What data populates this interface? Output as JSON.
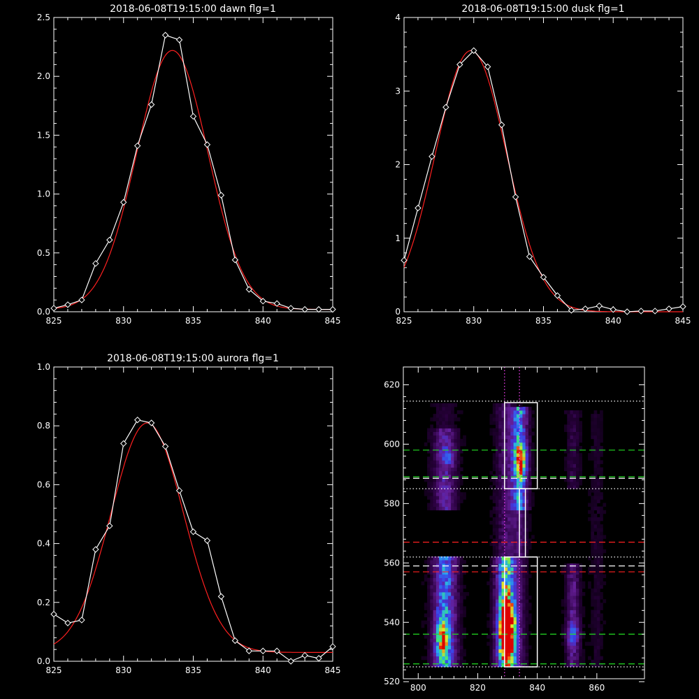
{
  "colors": {
    "background": "#000000",
    "axes": "#ffffff",
    "data_line": "#ffffff",
    "fit_line": "#ff2020",
    "green_guide": "#22dd22",
    "red_guide": "#ff2020",
    "white_guide": "#ffffff",
    "magenta_guide": "#ff40ff"
  },
  "chart_data": [
    {
      "type": "line",
      "title": "2018-06-08T19:15:00 dawn flg=1",
      "xlim": [
        825,
        845
      ],
      "ylim": [
        0,
        2.5
      ],
      "xticks": [
        "825",
        "830",
        "835",
        "840",
        "845"
      ],
      "yticks": [
        "0.0",
        "0.5",
        "1.0",
        "1.5",
        "2.0",
        "2.5"
      ],
      "series": [
        {
          "role": "data",
          "marker": "diamond",
          "x": [
            825,
            826,
            827,
            828,
            829,
            830,
            831,
            832,
            833,
            834,
            835,
            836,
            837,
            838,
            839,
            840,
            841,
            842,
            843,
            844,
            845
          ],
          "y": [
            0.03,
            0.06,
            0.1,
            0.41,
            0.61,
            0.93,
            1.41,
            1.76,
            2.35,
            2.31,
            1.66,
            1.42,
            0.99,
            0.44,
            0.19,
            0.09,
            0.07,
            0.03,
            0.02,
            0.02,
            0.02
          ]
        },
        {
          "role": "fit",
          "gauss": {
            "amp": 2.2,
            "center": 833.5,
            "sigma": 2.55,
            "base": 0.02
          }
        }
      ]
    },
    {
      "type": "line",
      "title": "2018-06-08T19:15:00 dusk flg=1",
      "xlim": [
        825,
        845
      ],
      "ylim": [
        0,
        4
      ],
      "xticks": [
        "825",
        "830",
        "835",
        "840",
        "845"
      ],
      "yticks": [
        "0",
        "1",
        "2",
        "3",
        "4"
      ],
      "series": [
        {
          "role": "data",
          "marker": "diamond",
          "x": [
            825,
            826,
            827,
            828,
            829,
            830,
            831,
            832,
            833,
            834,
            835,
            836,
            837,
            838,
            839,
            840,
            841,
            842,
            843,
            844,
            845
          ],
          "y": [
            0.7,
            1.41,
            2.11,
            2.78,
            3.36,
            3.55,
            3.33,
            2.54,
            1.56,
            0.75,
            0.47,
            0.22,
            0.02,
            0.04,
            0.08,
            0.03,
            0.0,
            0.01,
            0.01,
            0.04,
            0.07
          ]
        },
        {
          "role": "fit",
          "gauss": {
            "amp": 3.55,
            "center": 829.8,
            "sigma": 2.55,
            "base": 0.0
          }
        }
      ]
    },
    {
      "type": "line",
      "title": "2018-06-08T19:15:00 aurora flg=1",
      "xlim": [
        825,
        845
      ],
      "ylim": [
        0,
        1.0
      ],
      "xticks": [
        "825",
        "830",
        "835",
        "840",
        "845"
      ],
      "yticks": [
        "0.0",
        "0.2",
        "0.4",
        "0.6",
        "0.8",
        "1.0"
      ],
      "series": [
        {
          "role": "data",
          "marker": "diamond",
          "x": [
            825,
            826,
            827,
            828,
            829,
            830,
            831,
            832,
            833,
            834,
            835,
            836,
            837,
            838,
            839,
            840,
            841,
            842,
            843,
            844,
            845
          ],
          "y": [
            0.16,
            0.13,
            0.14,
            0.38,
            0.46,
            0.74,
            0.82,
            0.81,
            0.73,
            0.58,
            0.44,
            0.41,
            0.22,
            0.07,
            0.035,
            0.035,
            0.035,
            0.0,
            0.02,
            0.01,
            0.05
          ]
        },
        {
          "role": "fit",
          "gauss": {
            "amp": 0.78,
            "center": 831.7,
            "sigma": 2.6,
            "base": 0.03
          }
        }
      ]
    },
    {
      "type": "heatmap",
      "title": "",
      "xlim": [
        795,
        876
      ],
      "ylim": [
        521,
        626
      ],
      "xticks": [
        "800",
        "820",
        "840",
        "860"
      ],
      "yticks": [
        "520",
        "540",
        "560",
        "580",
        "600",
        "620"
      ],
      "bands": [
        {
          "x": 809,
          "width": 2.6,
          "segments": [
            [
              525,
              562,
              1.0
            ],
            [
              578,
              605,
              0.55
            ],
            [
              605,
              614,
              0.15
            ]
          ]
        },
        {
          "x": 829.5,
          "width": 2.2,
          "segments": [
            [
              525,
              562,
              1.35
            ],
            [
              562,
              614,
              0.35
            ]
          ]
        },
        {
          "x": 834,
          "width": 1.8,
          "segments": [
            [
              525,
              562,
              0.25
            ],
            [
              562,
              578,
              0.35
            ],
            [
              578,
              613,
              1.05
            ]
          ]
        },
        {
          "x": 852,
          "width": 1.5,
          "segments": [
            [
              525,
              560,
              0.45
            ],
            [
              585,
              612,
              0.2
            ]
          ]
        },
        {
          "x": 860,
          "width": 1.5,
          "segments": [
            [
              525,
              612,
              0.1
            ]
          ]
        }
      ],
      "hotspots": [
        {
          "x": 808,
          "y": 534,
          "sx": 1.5,
          "sy": 5,
          "amp": 1.0
        },
        {
          "x": 830,
          "y": 537,
          "sx": 1.8,
          "sy": 7,
          "amp": 1.9
        },
        {
          "x": 834.5,
          "y": 595,
          "sx": 1.5,
          "sy": 4,
          "amp": 1.0
        },
        {
          "x": 810,
          "y": 596,
          "sx": 1.5,
          "sy": 2,
          "amp": 0.5
        },
        {
          "x": 852,
          "y": 536,
          "sx": 1.5,
          "sy": 3,
          "amp": 0.5
        }
      ],
      "boxes": [
        {
          "x": [
            829,
            840
          ],
          "y": [
            525,
            562
          ]
        },
        {
          "x": [
            829,
            840
          ],
          "y": [
            585,
            614
          ]
        },
        {
          "x": [
            834,
            836
          ],
          "y": [
            562,
            585
          ]
        }
      ],
      "hlines": [
        {
          "y": 526,
          "color": "green",
          "style": "dash"
        },
        {
          "y": 536,
          "color": "green",
          "style": "dash"
        },
        {
          "y": 557,
          "color": "red",
          "style": "dash"
        },
        {
          "y": 559,
          "color": "white",
          "style": "dash"
        },
        {
          "y": 567,
          "color": "red",
          "style": "dash"
        },
        {
          "y": 588.5,
          "color": "white",
          "style": "dash"
        },
        {
          "y": 589,
          "color": "green",
          "style": "dash"
        },
        {
          "y": 598,
          "color": "green",
          "style": "dash"
        },
        {
          "y": 525,
          "color": "white",
          "style": "dot"
        },
        {
          "y": 562,
          "color": "white",
          "style": "dot"
        },
        {
          "y": 585,
          "color": "white",
          "style": "dot"
        },
        {
          "y": 614.5,
          "color": "white",
          "style": "dot"
        }
      ],
      "vlines": [
        {
          "x": 829,
          "color": "magenta",
          "style": "dot"
        },
        {
          "x": 834,
          "color": "magenta",
          "style": "dot"
        }
      ]
    }
  ]
}
